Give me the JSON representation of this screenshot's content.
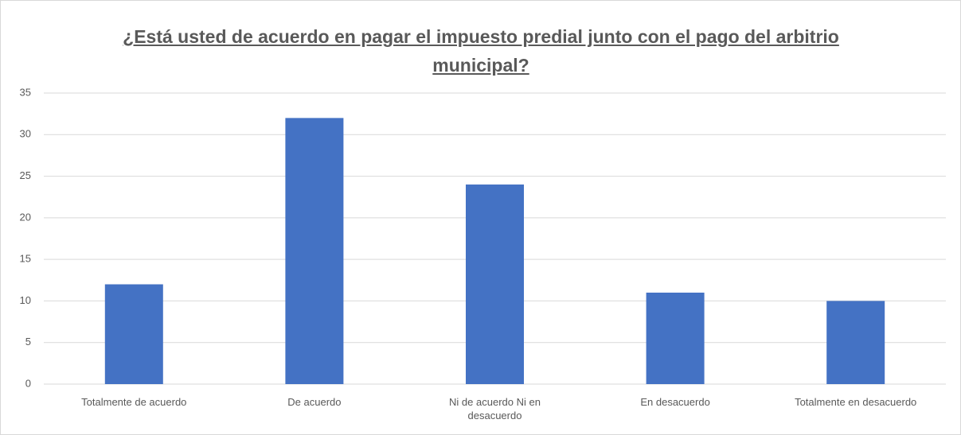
{
  "chart_data": {
    "type": "bar",
    "title": "¿Está usted de acuerdo en pagar el impuesto predial junto con el pago del arbitrio municipal?",
    "categories": [
      "Totalmente de acuerdo",
      "De acuerdo",
      "Ni de acuerdo Ni en desacuerdo",
      "En desacuerdo",
      "Totalmente en desacuerdo"
    ],
    "values": [
      12,
      32,
      24,
      11,
      10
    ],
    "color": "#4472c4",
    "ylim": [
      0,
      35
    ],
    "yticks": [
      0,
      5,
      10,
      15,
      20,
      25,
      30,
      35
    ],
    "grid": true
  }
}
